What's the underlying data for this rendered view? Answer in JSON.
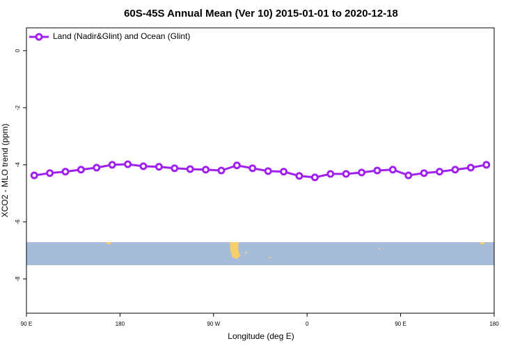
{
  "chart_data": {
    "type": "line",
    "title": "60S-45S Annual Mean (Ver 10)   2015-01-01 to 2020-12-18",
    "xlabel": "Longitude (deg E)",
    "ylabel": "XCO2 - MLO trend (ppm)",
    "x": [
      97.5,
      112.5,
      127.5,
      142.5,
      157.5,
      172.5,
      187.5,
      202.5,
      217.5,
      232.5,
      247.5,
      262.5,
      277.5,
      292.5,
      307.5,
      322.5,
      337.5,
      352.5,
      367.5,
      382.5,
      397.5,
      412.5,
      427.5,
      442.5,
      457.5,
      472.5,
      487.5,
      502.5,
      517.5,
      532.5
    ],
    "series": [
      {
        "name": "Land (Nadir&Glint) and Ocean (Glint)",
        "color": "#a020f0",
        "values": [
          -4.37,
          -4.29,
          -4.24,
          -4.17,
          -4.1,
          -4.0,
          -3.98,
          -4.05,
          -4.07,
          -4.12,
          -4.15,
          -4.17,
          -4.2,
          -4.02,
          -4.12,
          -4.22,
          -4.24,
          -4.39,
          -4.44,
          -4.32,
          -4.32,
          -4.27,
          -4.2,
          -4.17,
          -4.37,
          -4.29,
          -4.24,
          -4.17,
          -4.1,
          -4.0
        ]
      }
    ],
    "xlim": [
      90,
      540
    ],
    "xticks": [
      {
        "value": 90,
        "label": "90 E"
      },
      180,
      {
        "value": 270,
        "label": "90 W"
      },
      {
        "value": 360,
        "label": "0"
      },
      {
        "value": 450,
        "label": "90 E"
      },
      {
        "value": 540,
        "label": "180"
      }
    ],
    "ylim": [
      -9.2,
      0.8
    ],
    "yticks": [
      0,
      -2,
      -4,
      -6,
      -8
    ],
    "legend": "top-left"
  }
}
